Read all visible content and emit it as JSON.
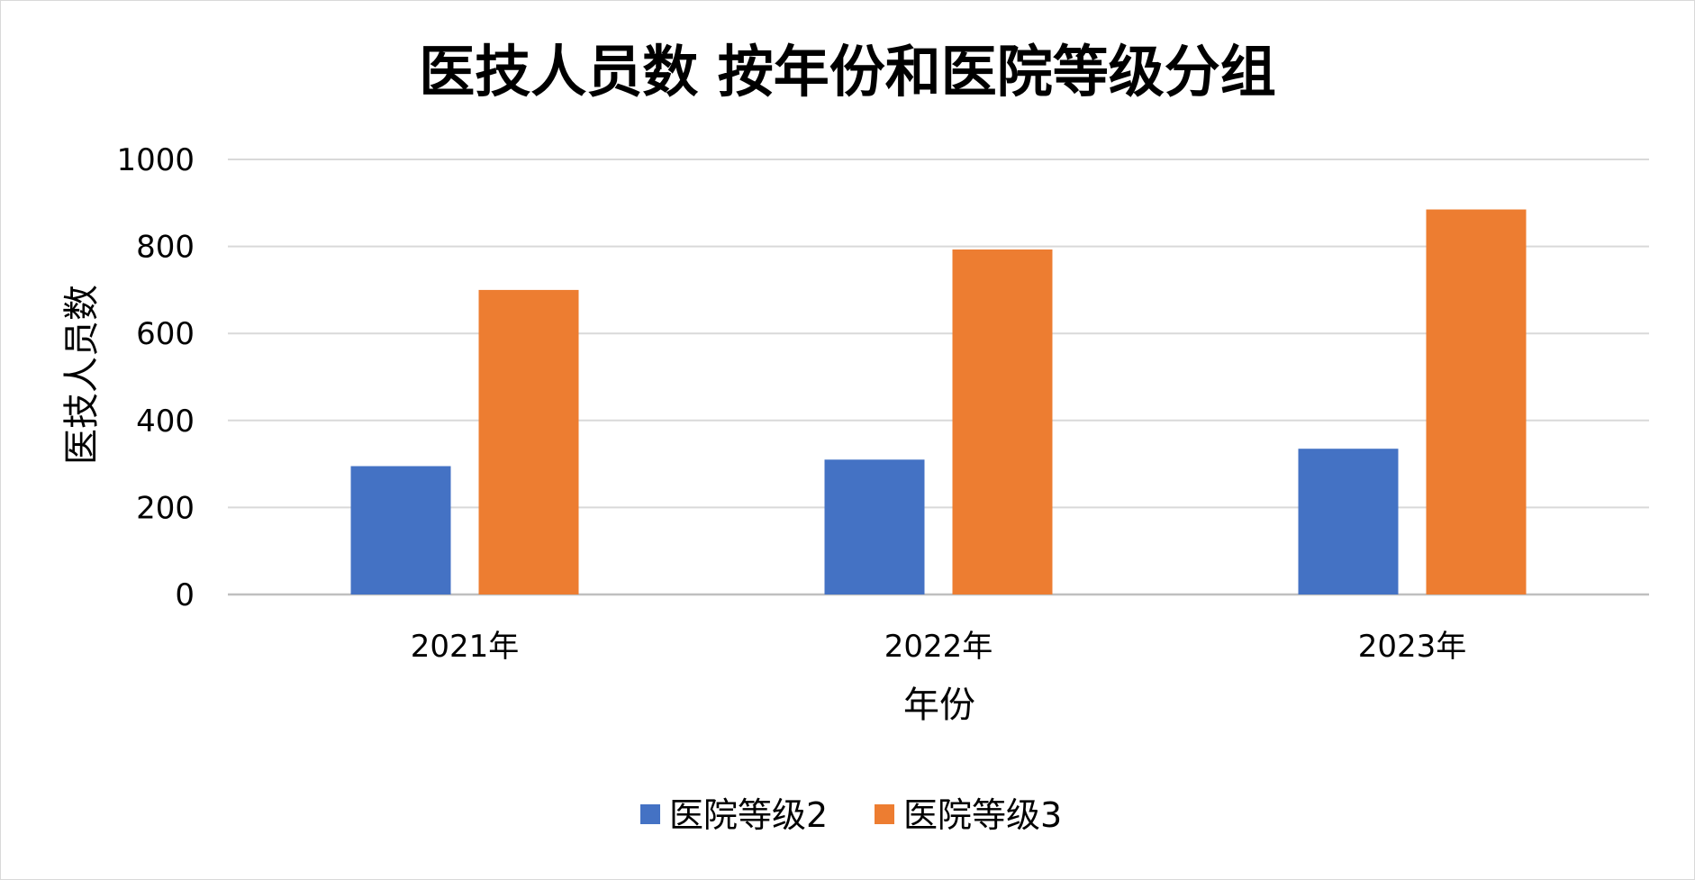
{
  "chart_data": {
    "type": "bar",
    "title": "医技人员数 按年份和医院等级分组",
    "xlabel": "年份",
    "ylabel": "医技人员数",
    "categories": [
      "2021年",
      "2022年",
      "2023年"
    ],
    "series": [
      {
        "name": "医院等级2",
        "values": [
          295,
          310,
          335
        ],
        "color": "#4472C4"
      },
      {
        "name": "医院等级3",
        "values": [
          700,
          793,
          885
        ],
        "color": "#ED7D31"
      }
    ],
    "ylim": [
      0,
      1000
    ],
    "yticks": [
      0,
      200,
      400,
      600,
      800,
      1000
    ],
    "grid": true,
    "legend_position": "bottom"
  }
}
